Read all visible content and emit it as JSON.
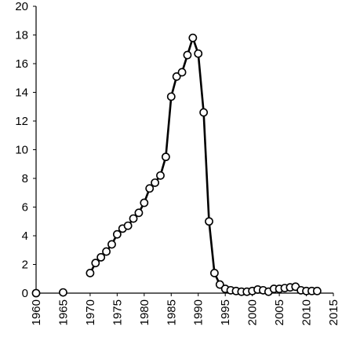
{
  "chart_data": {
    "type": "line",
    "title": "",
    "xlabel": "",
    "ylabel": "",
    "xlim": [
      1960,
      2015
    ],
    "ylim": [
      0,
      20
    ],
    "grid": false,
    "legend": "none",
    "x_ticks": [
      1960,
      1965,
      1970,
      1975,
      1980,
      1985,
      1990,
      1995,
      2000,
      2005,
      2010,
      2015
    ],
    "y_ticks": [
      0,
      2,
      4,
      6,
      8,
      10,
      12,
      14,
      16,
      18,
      20
    ],
    "line_color": "#000000",
    "marker_fill": "#ffffff",
    "series": [
      {
        "markers_only": true,
        "points": [
          [
            1960,
            0.0
          ],
          [
            1965,
            0.05
          ]
        ]
      },
      {
        "points": [
          [
            1970,
            1.4
          ],
          [
            1971,
            2.1
          ],
          [
            1972,
            2.5
          ],
          [
            1973,
            2.9
          ],
          [
            1974,
            3.4
          ],
          [
            1975,
            4.1
          ],
          [
            1976,
            4.5
          ],
          [
            1977,
            4.7
          ],
          [
            1978,
            5.2
          ],
          [
            1979,
            5.6
          ],
          [
            1980,
            6.3
          ],
          [
            1981,
            7.3
          ],
          [
            1982,
            7.7
          ],
          [
            1983,
            8.2
          ],
          [
            1984,
            9.5
          ],
          [
            1985,
            13.7
          ],
          [
            1986,
            15.1
          ],
          [
            1987,
            15.4
          ],
          [
            1988,
            16.6
          ],
          [
            1989,
            17.8
          ],
          [
            1990,
            16.7
          ],
          [
            1991,
            12.6
          ],
          [
            1992,
            5.0
          ],
          [
            1993,
            1.4
          ],
          [
            1994,
            0.6
          ],
          [
            1995,
            0.3
          ],
          [
            1996,
            0.2
          ],
          [
            1997,
            0.15
          ],
          [
            1998,
            0.1
          ],
          [
            1999,
            0.1
          ],
          [
            2000,
            0.15
          ],
          [
            2001,
            0.25
          ],
          [
            2002,
            0.2
          ],
          [
            2003,
            0.1
          ],
          [
            2004,
            0.3
          ],
          [
            2005,
            0.3
          ],
          [
            2006,
            0.35
          ],
          [
            2007,
            0.4
          ],
          [
            2008,
            0.45
          ],
          [
            2009,
            0.2
          ],
          [
            2010,
            0.15
          ],
          [
            2011,
            0.15
          ],
          [
            2012,
            0.15
          ]
        ]
      }
    ]
  }
}
